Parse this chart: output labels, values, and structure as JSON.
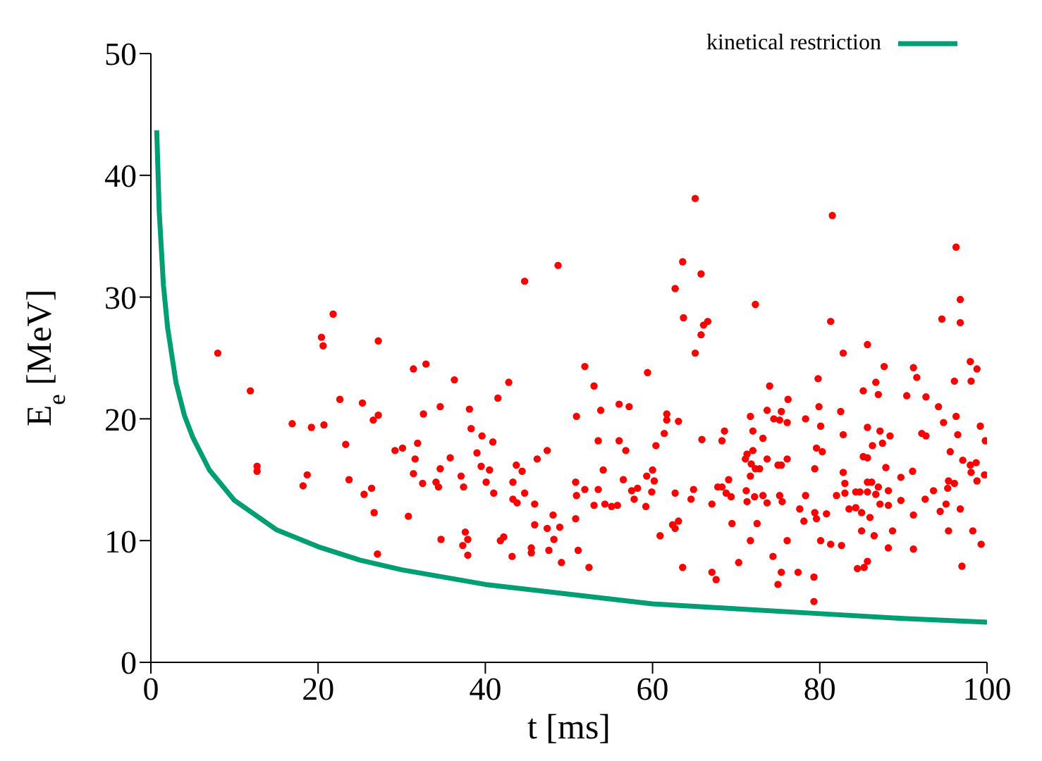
{
  "chart_data": {
    "type": "scatter",
    "xlabel": "t [ms]",
    "ylabel": "E$_{e}$ [MeV]",
    "xlim": [
      0,
      100
    ],
    "xticks": [
      0,
      20,
      40,
      60,
      80,
      100
    ],
    "ylim": [
      0,
      50
    ],
    "yticks": [
      0,
      10,
      20,
      30,
      40,
      50
    ],
    "grid": false,
    "legend": "top right",
    "series": [
      {
        "type": "line",
        "name": "kinetical restriction",
        "color": "#009e73",
        "line_style": "solid",
        "x": [
          0.7,
          1,
          1.5,
          2,
          3,
          4,
          5,
          7,
          10,
          15,
          20,
          25,
          30,
          40,
          50,
          60,
          70,
          80,
          90,
          100
        ],
        "values": [
          43.7,
          37,
          31,
          27.5,
          23,
          20.3,
          18.5,
          15.8,
          13.3,
          10.9,
          9.5,
          8.4,
          7.6,
          6.4,
          5.6,
          4.8,
          4.4,
          4.0,
          3.6,
          3.3
        ]
      },
      {
        "type": "scatter",
        "color": "#ff0000",
        "marker": "circle",
        "x": [
          8.0,
          11.9,
          12.7,
          12.7,
          16.9,
          19.2,
          20.7,
          20.4,
          20.6,
          21.8,
          22.6,
          18.7,
          18.2,
          23.3,
          23.7,
          25.3,
          27.2,
          31.4,
          32.9,
          27.2,
          26.6,
          29.2,
          30.1,
          31.9,
          32.6,
          31.6,
          31.4,
          32.5,
          34.1,
          26.4,
          25.5,
          26.7,
          30.8,
          27.1,
          34.6,
          34.4,
          48.7,
          44.7,
          51.9,
          59.4,
          53.0,
          36.3,
          42.8,
          41.5,
          34.6,
          38.1,
          50.9,
          53.8,
          56.0,
          57.2,
          61.7,
          61.7,
          63.1,
          38.3,
          39.6,
          40.9,
          61.4,
          65.9,
          53.5,
          56.0,
          56.8,
          60.4,
          47.4,
          39.0,
          35.8,
          46.2,
          43.7,
          39.5,
          40.5,
          44.4,
          54.1,
          60.0,
          37.1,
          43.3,
          40.1,
          50.8,
          56.5,
          59.3,
          60.2,
          37.4,
          51.9,
          53.5,
          57.5,
          58.2,
          59.9,
          62.7,
          64.9,
          41.0,
          44.7,
          50.9,
          43.3,
          43.8,
          45.9,
          53.0,
          54.3,
          55.8,
          55.1,
          57.8,
          59.2,
          64.6,
          67.1,
          48.1,
          50.8,
          45.9,
          47.4,
          48.9,
          62.4,
          62.7,
          63.1,
          37.6,
          34.7,
          37.9,
          42.2,
          41.8,
          48.2,
          60.9,
          37.3,
          45.5,
          45.5,
          47.6,
          51.1,
          37.9,
          43.2,
          49.1,
          52.4,
          63.6,
          67.1,
          67.6,
          63.6,
          65.8,
          62.7,
          63.7,
          66.6,
          66.1,
          65.8,
          65.1,
          65.1,
          81.5,
          96.3,
          96.8,
          72.3,
          81.3,
          94.6,
          96.8,
          82.8,
          85.7,
          87.7,
          91.2,
          91.6,
          98.0,
          98.8,
          96.1,
          98.1,
          79.8,
          74.0,
          86.7,
          85.2,
          87.0,
          90.4,
          92.7,
          76.2,
          94.2,
          79.9,
          73.7,
          75.4,
          82.5,
          71.7,
          96.3,
          74.5,
          75.2,
          78.3,
          76.1,
          80.1,
          94.8,
          99.2,
          85.7,
          72.0,
          87.2,
          68.6,
          92.2,
          92.7,
          82.8,
          96.5,
          88.4,
          73.2,
          68.3,
          99.8,
          86.3,
          87.5,
          79.6,
          80.3,
          72.0,
          95.6,
          71.3,
          85.2,
          85.7,
          71.1,
          71.8,
          72.3,
          72.8,
          73.7,
          75.0,
          75.4,
          76.1,
          97.1,
          98.0,
          98.7,
          79.4,
          87.9,
          82.8,
          98.1,
          99.7,
          91.1,
          89.7,
          71.7,
          69.1,
          95.4,
          96.1,
          98.8,
          83.0,
          85.7,
          86.2,
          87.0,
          67.8,
          68.3,
          93.6,
          95.3,
          88.2,
          68.8,
          71.2,
          83.0,
          84.3,
          84.8,
          85.7,
          86.7,
          82.0,
          78.3,
          75.2,
          73.2,
          72.2,
          69.4,
          92.6,
          89.7,
          75.5,
          87.2,
          88.2,
          95.1,
          73.7,
          71.3,
          83.5,
          84.3,
          85.0,
          96.8,
          94.4,
          77.6,
          79.4,
          80.8,
          79.6,
          86.0,
          91.2,
          69.5,
          72.5,
          78.1,
          85.0,
          86.5,
          88.7,
          95.4,
          98.3,
          71.7,
          76.1,
          80.1,
          81.3,
          82.6,
          88.2,
          91.2,
          99.3,
          74.4,
          85.7,
          70.3,
          97.0,
          84.5,
          85.3,
          75.4,
          77.4,
          79.3,
          75.0,
          79.3
        ],
        "values": [
          25.4,
          22.3,
          16.1,
          15.7,
          19.6,
          19.3,
          19.5,
          26.7,
          26.0,
          28.6,
          21.6,
          15.4,
          14.5,
          17.9,
          15.0,
          21.3,
          26.4,
          24.1,
          24.5,
          20.3,
          19.9,
          17.4,
          17.6,
          18.0,
          20.4,
          16.7,
          15.5,
          14.7,
          14.8,
          14.3,
          13.8,
          12.3,
          12.0,
          8.9,
          15.9,
          14.4,
          32.6,
          31.3,
          24.3,
          23.8,
          22.7,
          23.2,
          23.0,
          21.7,
          21.0,
          20.8,
          20.2,
          20.7,
          21.2,
          21.0,
          20.4,
          19.9,
          19.8,
          19.2,
          18.6,
          18.1,
          18.8,
          18.3,
          18.2,
          18.2,
          17.4,
          17.8,
          17.4,
          17.2,
          16.8,
          16.7,
          16.2,
          16.1,
          15.8,
          15.7,
          15.8,
          15.8,
          15.3,
          14.8,
          14.8,
          14.8,
          15.0,
          15.3,
          14.9,
          14.4,
          14.2,
          14.2,
          14.1,
          14.3,
          14.0,
          13.9,
          14.2,
          13.9,
          13.9,
          13.7,
          13.4,
          13.1,
          13.0,
          12.9,
          13.0,
          12.9,
          12.8,
          13.4,
          12.8,
          13.4,
          13.0,
          12.1,
          11.8,
          11.3,
          11.0,
          11.1,
          11.3,
          11.0,
          11.6,
          10.7,
          10.1,
          10.1,
          10.3,
          10.0,
          10.1,
          10.4,
          9.6,
          9.4,
          9.0,
          9.2,
          9.2,
          8.8,
          8.7,
          8.2,
          7.8,
          7.8,
          7.4,
          6.8,
          32.9,
          31.9,
          30.7,
          28.3,
          28.0,
          27.7,
          26.9,
          25.4,
          38.1,
          36.7,
          34.1,
          29.8,
          29.4,
          28.0,
          28.2,
          27.9,
          25.4,
          26.1,
          24.3,
          24.2,
          23.4,
          24.7,
          24.1,
          23.1,
          23.1,
          23.3,
          22.7,
          23.0,
          22.3,
          22.0,
          21.9,
          21.8,
          21.6,
          21.0,
          21.0,
          20.7,
          20.6,
          20.6,
          20.2,
          20.2,
          20.0,
          19.9,
          20.0,
          19.7,
          19.4,
          19.7,
          19.4,
          19.3,
          19.0,
          19.0,
          19.0,
          18.8,
          18.6,
          18.7,
          18.7,
          18.6,
          18.4,
          18.2,
          18.2,
          17.8,
          18.0,
          17.6,
          17.3,
          17.4,
          17.3,
          17.1,
          16.9,
          16.8,
          16.7,
          16.3,
          15.9,
          15.9,
          16.7,
          16.2,
          16.2,
          16.7,
          16.6,
          16.2,
          16.4,
          15.9,
          16.0,
          15.6,
          15.6,
          15.4,
          15.7,
          15.2,
          15.3,
          15.0,
          14.9,
          14.7,
          14.9,
          14.7,
          14.8,
          14.8,
          14.4,
          14.4,
          14.4,
          14.1,
          14.3,
          14.1,
          13.9,
          14.1,
          13.9,
          14.0,
          14.0,
          14.0,
          13.8,
          13.7,
          13.7,
          13.7,
          13.7,
          13.6,
          13.6,
          13.4,
          13.3,
          13.2,
          13.0,
          12.9,
          13.0,
          13.1,
          13.2,
          12.6,
          12.7,
          12.3,
          12.6,
          12.4,
          12.6,
          12.3,
          12.2,
          11.8,
          11.9,
          12.1,
          11.4,
          11.4,
          11.6,
          10.8,
          10.4,
          10.8,
          10.8,
          10.8,
          10.0,
          10.0,
          10.0,
          9.7,
          9.6,
          9.4,
          9.3,
          9.7,
          8.7,
          8.3,
          8.2,
          7.9,
          7.7,
          7.8,
          7.4,
          7.4,
          7.0,
          6.4,
          5.0
        ]
      }
    ]
  }
}
